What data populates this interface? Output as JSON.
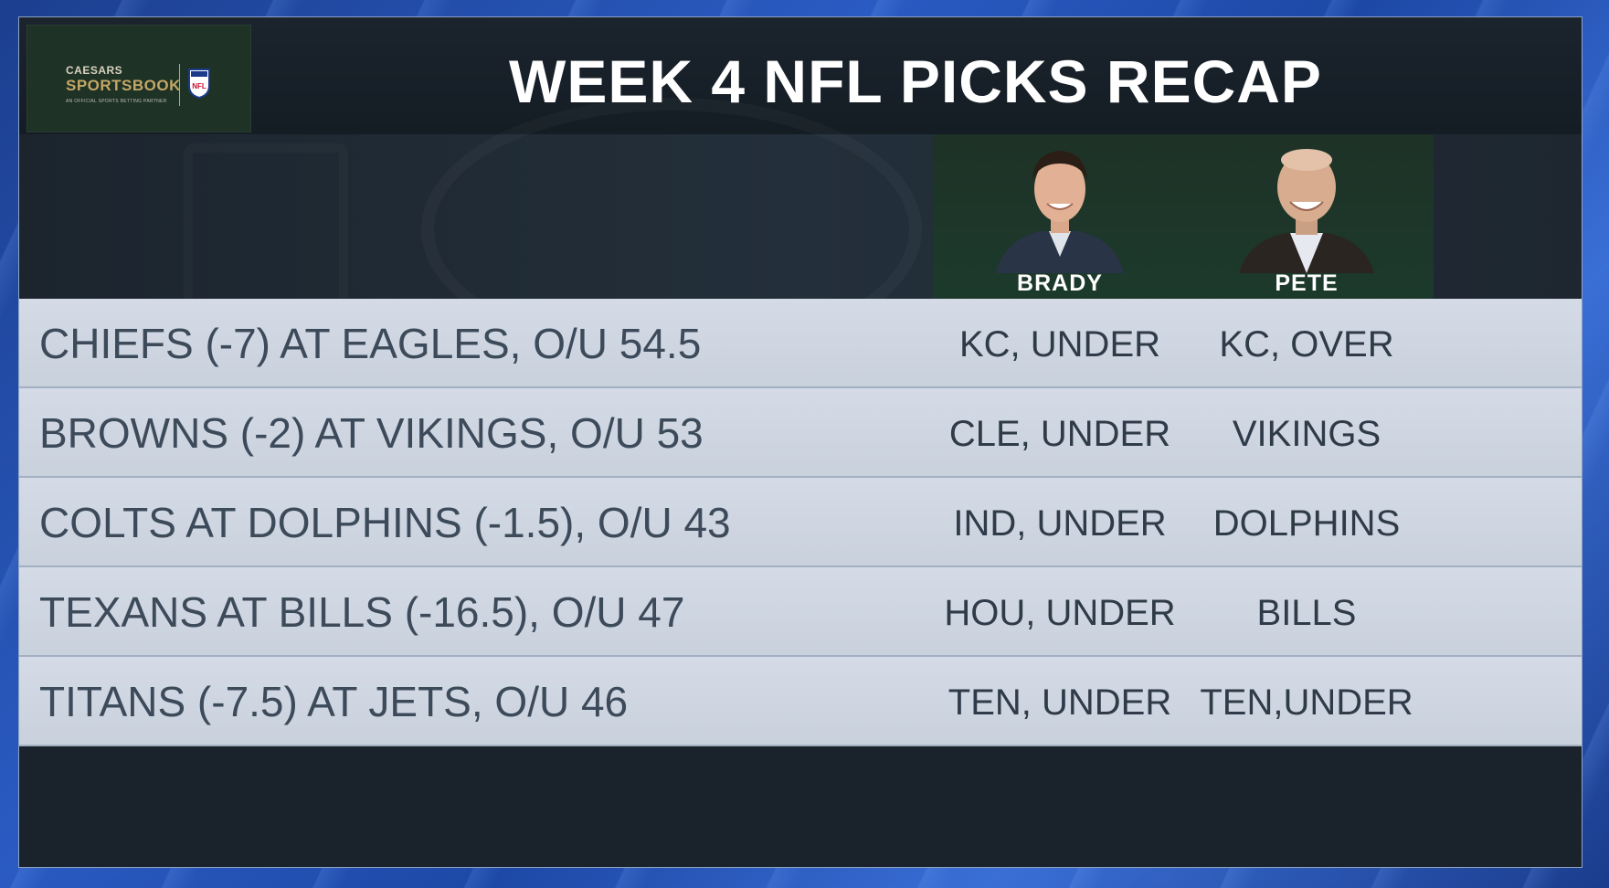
{
  "title": "WEEK 4 NFL PICKS RECAP",
  "logo": {
    "brand_top": "CAESARS",
    "brand_main": "SPORTSBOOK",
    "brand_sub": "AN OFFICIAL SPORTS BETTING PARTNER",
    "league_badge": "NFL"
  },
  "pickers": [
    {
      "name": "BRADY"
    },
    {
      "name": "PETE"
    }
  ],
  "rows": [
    {
      "game": "CHIEFS (-7) AT EAGLES, O/U 54.5",
      "brady": "KC, UNDER",
      "pete": "KC, OVER"
    },
    {
      "game": "BROWNS (-2) AT VIKINGS, O/U 53",
      "brady": "CLE, UNDER",
      "pete": "VIKINGS"
    },
    {
      "game": "COLTS AT DOLPHINS (-1.5), O/U 43",
      "brady": "IND, UNDER",
      "pete": "DOLPHINS"
    },
    {
      "game": "TEXANS AT BILLS (-16.5), O/U 47",
      "brady": "HOU, UNDER",
      "pete": "BILLS"
    },
    {
      "game": "TITANS (-7.5) AT JETS, O/U 46",
      "brady": "TEN, UNDER",
      "pete": "TEN,UNDER"
    }
  ],
  "colors": {
    "background": "#1c3f8f",
    "panel": "#1a232c",
    "row": "#d4dbe6",
    "picker_bg": "#1e3226",
    "accent_gold": "#c4a766"
  }
}
